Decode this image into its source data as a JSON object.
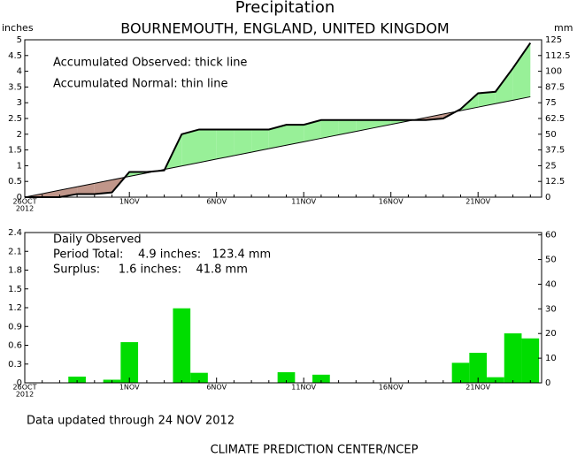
{
  "chart_data": [
    {
      "type": "line",
      "title": "Precipitation",
      "subtitle": "BOURNEMOUTH, ENGLAND, UNITED KINGDOM",
      "y_label": "inches",
      "y2_label": "mm",
      "annotations": [
        "Accumulated Observed: thick line",
        "Accumulated Normal: thin line"
      ],
      "categories": [
        "26OCT",
        null,
        null,
        null,
        null,
        null,
        "1NOV",
        null,
        null,
        null,
        null,
        "6NOV",
        null,
        null,
        null,
        null,
        "11NOV",
        null,
        null,
        null,
        null,
        "16NOV",
        null,
        null,
        null,
        null,
        "21NOV",
        null,
        null,
        null
      ],
      "x_year": "2012",
      "series": [
        {
          "color": "#000000",
          "width": 2,
          "values": [
            0,
            0,
            0,
            0.1,
            0.1,
            0.15,
            0.8,
            0.8,
            0.85,
            2.0,
            2.15,
            2.15,
            2.15,
            2.15,
            2.15,
            2.3,
            2.3,
            2.45,
            2.45,
            2.45,
            2.45,
            2.45,
            2.45,
            2.45,
            2.5,
            2.8,
            3.3,
            3.35,
            4.1,
            4.9
          ]
        },
        {
          "color": "#000000",
          "width": 1,
          "values": [
            0,
            0.11,
            0.22,
            0.33,
            0.44,
            0.55,
            0.66,
            0.77,
            0.88,
            0.99,
            1.1,
            1.21,
            1.32,
            1.43,
            1.54,
            1.65,
            1.76,
            1.87,
            1.98,
            2.09,
            2.2,
            2.31,
            2.42,
            2.53,
            2.64,
            2.75,
            2.86,
            2.97,
            3.08,
            3.19
          ]
        }
      ],
      "surplus_color": "#98f098",
      "deficit_color": "#c0968a",
      "ylim": [
        0,
        5
      ],
      "yticks": [
        0,
        0.5,
        1,
        1.5,
        2,
        2.5,
        3,
        3.5,
        4,
        4.5,
        5
      ],
      "y2lim": [
        0,
        125
      ],
      "y2ticks": [
        0,
        12.5,
        25,
        37.5,
        50,
        62.5,
        75,
        87.5,
        100,
        112.5,
        125
      ]
    },
    {
      "type": "bar",
      "annotations": [
        "Daily Observed",
        "Period Total:    4.9 inches:   123.4 mm",
        "Surplus:     1.6 inches:    41.8 mm"
      ],
      "categories": [
        "26OCT",
        null,
        null,
        null,
        null,
        null,
        "1NOV",
        null,
        null,
        null,
        null,
        "6NOV",
        null,
        null,
        null,
        null,
        "11NOV",
        null,
        null,
        null,
        null,
        "16NOV",
        null,
        null,
        null,
        null,
        "21NOV",
        null,
        null,
        null
      ],
      "x_year": "2012",
      "values": [
        0,
        0,
        0,
        0.1,
        0,
        0.05,
        0.65,
        0,
        0,
        1.19,
        0.16,
        0,
        0,
        0,
        0,
        0.17,
        0,
        0.13,
        0,
        0,
        0,
        0,
        0,
        0,
        0,
        0.32,
        0.48,
        0.09,
        0.79,
        0.71
      ],
      "color": "#00dd00",
      "ylim": [
        0,
        2.4
      ],
      "yticks": [
        0,
        0.3,
        0.6,
        0.9,
        1.2,
        1.5,
        1.8,
        2.1,
        2.4
      ],
      "y2lim": [
        0,
        60.96
      ],
      "y2ticks": [
        0,
        10,
        20,
        30,
        40,
        50,
        60
      ]
    }
  ],
  "footer": {
    "updated": "Data updated through 24 NOV 2012",
    "source": "CLIMATE PREDICTION CENTER/NCEP"
  }
}
